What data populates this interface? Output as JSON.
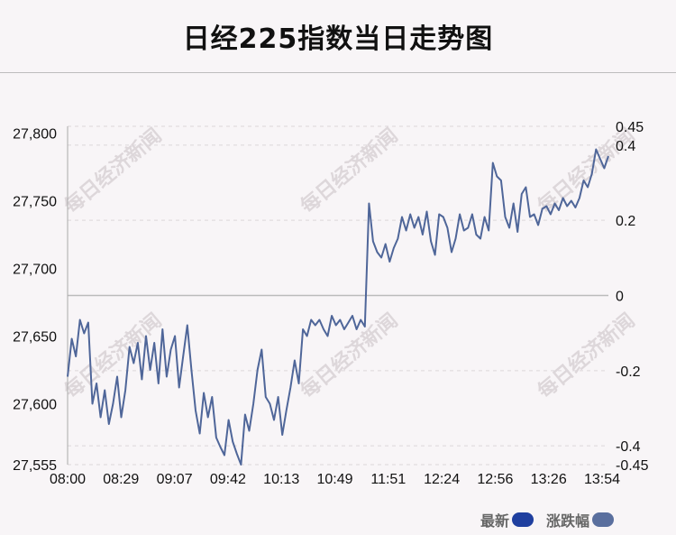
{
  "title": "日经225指数当日走势图",
  "watermark_text": "每日经济新闻",
  "legend": [
    {
      "label": "最新",
      "color": "#1f3f9f"
    },
    {
      "label": "涨跌幅",
      "color": "#5a6f9e"
    }
  ],
  "chart_data": {
    "type": "line",
    "title": "日经225指数当日走势图",
    "x_tick_labels": [
      "08:00",
      "08:29",
      "09:07",
      "09:42",
      "10:13",
      "10:49",
      "11:51",
      "12:24",
      "12:56",
      "13:26",
      "13:54"
    ],
    "y_left_tick_labels": [
      "27,800",
      "27,750",
      "27,700",
      "27,650",
      "27,600",
      "27,555"
    ],
    "y_left_ticks": [
      27800,
      27750,
      27700,
      27650,
      27600,
      27555
    ],
    "y_left_range": [
      27555,
      27805
    ],
    "y_right_tick_labels": [
      "0.45",
      "0.4",
      "0.2",
      "0",
      "-0.2",
      "-0.4",
      "-0.45"
    ],
    "y_right_ticks": [
      0.45,
      0.4,
      0.2,
      0,
      -0.2,
      -0.4,
      -0.45
    ],
    "y_right_range": [
      -0.45,
      0.45
    ],
    "baseline_value": 27680,
    "line_color": "#4f6699",
    "grid": "horizontal dashed",
    "series": [
      {
        "values": [
          27620,
          27648,
          27635,
          27662,
          27652,
          27660,
          27600,
          27615,
          27590,
          27610,
          27585,
          27600,
          27620,
          27590,
          27610,
          27642,
          27630,
          27645,
          27618,
          27650,
          27625,
          27645,
          27615,
          27655,
          27620,
          27640,
          27650,
          27612,
          27635,
          27658,
          27625,
          27595,
          27578,
          27608,
          27590,
          27605,
          27575,
          27568,
          27562,
          27588,
          27572,
          27563,
          27555,
          27592,
          27580,
          27600,
          27625,
          27640,
          27605,
          27600,
          27588,
          27605,
          27577,
          27595,
          27612,
          27632,
          27615,
          27655,
          27650,
          27662,
          27658,
          27662,
          27655,
          27650,
          27665,
          27658,
          27662,
          27655,
          27660,
          27665,
          27655,
          27662,
          27657,
          27748,
          27720,
          27712,
          27708,
          27718,
          27705,
          27715,
          27722,
          27738,
          27728,
          27740,
          27730,
          27738,
          27725,
          27742,
          27720,
          27710,
          27740,
          27738,
          27730,
          27712,
          27722,
          27740,
          27728,
          27730,
          27740,
          27725,
          27722,
          27738,
          27728,
          27778,
          27768,
          27765,
          27738,
          27730,
          27748,
          27727,
          27755,
          27760,
          27738,
          27740,
          27732,
          27744,
          27746,
          27740,
          27748,
          27743,
          27752,
          27746,
          27750,
          27745,
          27752,
          27765,
          27760,
          27770,
          27788,
          27781,
          27774,
          27783
        ]
      }
    ]
  }
}
